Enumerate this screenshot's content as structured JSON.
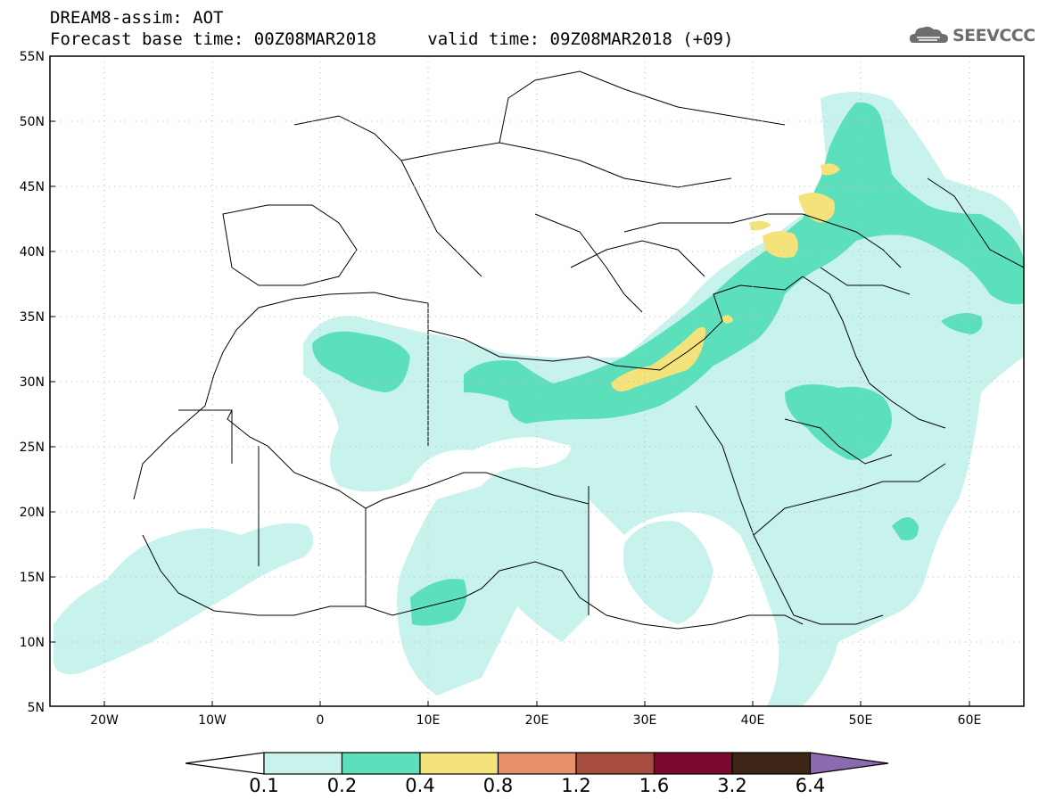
{
  "header": {
    "line1": "DREAM8-assim: AOT",
    "line2_base": "Forecast base time: 00Z08MAR2018",
    "line2_valid": "valid time: 09Z08MAR2018 (+09)"
  },
  "logo": {
    "text": "SEEVCCC",
    "icon": "cloud-logo-icon"
  },
  "map": {
    "lon_range": [
      -25,
      65
    ],
    "lat_range": [
      5,
      55
    ],
    "lat_ticks": [
      "55N",
      "50N",
      "45N",
      "40N",
      "35N",
      "30N",
      "25N",
      "20N",
      "15N",
      "10N",
      "5N"
    ],
    "lon_ticks": [
      "20W",
      "10W",
      "0",
      "10E",
      "20E",
      "30E",
      "40E",
      "50E",
      "60E"
    ],
    "grid": true
  },
  "colorbar": {
    "levels": [
      "0.1",
      "0.2",
      "0.4",
      "0.8",
      "1.2",
      "1.6",
      "3.2",
      "6.4"
    ],
    "colors": [
      "#c8f2ec",
      "#5ce0bc",
      "#f4e37a",
      "#e8906a",
      "#a84d3e",
      "#7a0a2e",
      "#3d2616",
      "#8b6ab0"
    ],
    "under_color": "#ffffff"
  },
  "colors": {
    "aot_0_1": "#c8f2ec",
    "aot_0_2": "#5ce0bc",
    "aot_0_4": "#f4e37a"
  }
}
